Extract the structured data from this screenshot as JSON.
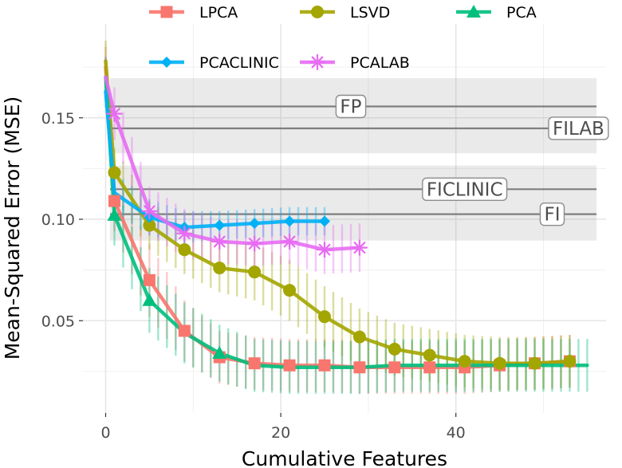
{
  "chart_data": {
    "type": "line",
    "title": "",
    "xlabel": "Cumulative Features",
    "ylabel": "Mean-Squared Error (MSE)",
    "xlim": [
      -4,
      56
    ],
    "ylim": [
      0.006,
      0.19
    ],
    "x_ticks": [
      0,
      20,
      40
    ],
    "y_ticks": [
      0.05,
      0.1,
      0.15
    ],
    "x_tick_labels": [
      "0",
      "20",
      "40"
    ],
    "y_tick_labels": [
      "0.05",
      "0.10",
      "0.15"
    ],
    "grid": true,
    "legend_position": "top",
    "reference_bands": [
      {
        "label": "FP",
        "center": 0.1556,
        "lower": 0.1325,
        "upper": 0.1695
      },
      {
        "label": "FILAB",
        "center": 0.1448,
        "lower": 0.1325,
        "upper": 0.1695
      },
      {
        "label": "FICLINIC",
        "center": 0.1148,
        "lower": 0.0895,
        "upper": 0.1265
      },
      {
        "label": "FI",
        "center": 0.1025,
        "lower": 0.0895,
        "upper": 0.1265
      }
    ],
    "series": [
      {
        "name": "LPCA",
        "color": "#F8766D",
        "marker": "square",
        "points": [
          {
            "x": 0,
            "y": 0.175,
            "err": 0.01
          },
          {
            "x": 1,
            "y": 0.109,
            "err": 0.015
          },
          {
            "x": 5,
            "y": 0.07,
            "err": 0.018
          },
          {
            "x": 9,
            "y": 0.045,
            "err": 0.015
          },
          {
            "x": 13,
            "y": 0.032,
            "err": 0.013
          },
          {
            "x": 17,
            "y": 0.029,
            "err": 0.013
          },
          {
            "x": 21,
            "y": 0.028,
            "err": 0.013
          },
          {
            "x": 25,
            "y": 0.028,
            "err": 0.013
          },
          {
            "x": 29,
            "y": 0.027,
            "err": 0.013
          },
          {
            "x": 33,
            "y": 0.027,
            "err": 0.013
          },
          {
            "x": 37,
            "y": 0.027,
            "err": 0.013
          },
          {
            "x": 41,
            "y": 0.027,
            "err": 0.013
          },
          {
            "x": 45,
            "y": 0.028,
            "err": 0.013
          },
          {
            "x": 49,
            "y": 0.029,
            "err": 0.013
          },
          {
            "x": 53,
            "y": 0.03,
            "err": 0.013
          }
        ],
        "marker_x": [
          1,
          5,
          9,
          13,
          17,
          21,
          25,
          29,
          33,
          37,
          41,
          45,
          49,
          53
        ]
      },
      {
        "name": "LSVD",
        "color": "#A3A500",
        "marker": "circle",
        "points": [
          {
            "x": 0,
            "y": 0.178,
            "err": 0.01
          },
          {
            "x": 1,
            "y": 0.123,
            "err": 0.012
          },
          {
            "x": 5,
            "y": 0.097,
            "err": 0.012
          },
          {
            "x": 9,
            "y": 0.085,
            "err": 0.012
          },
          {
            "x": 13,
            "y": 0.076,
            "err": 0.012
          },
          {
            "x": 17,
            "y": 0.074,
            "err": 0.014
          },
          {
            "x": 21,
            "y": 0.065,
            "err": 0.015
          },
          {
            "x": 25,
            "y": 0.052,
            "err": 0.015
          },
          {
            "x": 29,
            "y": 0.042,
            "err": 0.014
          },
          {
            "x": 33,
            "y": 0.036,
            "err": 0.013
          },
          {
            "x": 37,
            "y": 0.033,
            "err": 0.013
          },
          {
            "x": 41,
            "y": 0.03,
            "err": 0.013
          },
          {
            "x": 45,
            "y": 0.029,
            "err": 0.013
          },
          {
            "x": 49,
            "y": 0.029,
            "err": 0.013
          },
          {
            "x": 53,
            "y": 0.03,
            "err": 0.013
          }
        ],
        "marker_x": [
          1,
          5,
          9,
          13,
          17,
          21,
          25,
          29,
          33,
          37,
          41,
          45,
          49,
          53
        ]
      },
      {
        "name": "PCA",
        "color": "#00BF7D",
        "marker": "triangle",
        "points": [
          {
            "x": 0,
            "y": 0.17,
            "err": 0.01
          },
          {
            "x": 1,
            "y": 0.102,
            "err": 0.015
          },
          {
            "x": 5,
            "y": 0.06,
            "err": 0.016
          },
          {
            "x": 9,
            "y": 0.044,
            "err": 0.015
          },
          {
            "x": 13,
            "y": 0.034,
            "err": 0.014
          },
          {
            "x": 17,
            "y": 0.028,
            "err": 0.013
          },
          {
            "x": 21,
            "y": 0.027,
            "err": 0.013
          },
          {
            "x": 25,
            "y": 0.027,
            "err": 0.013
          },
          {
            "x": 29,
            "y": 0.027,
            "err": 0.013
          },
          {
            "x": 33,
            "y": 0.028,
            "err": 0.013
          },
          {
            "x": 37,
            "y": 0.028,
            "err": 0.013
          },
          {
            "x": 41,
            "y": 0.028,
            "err": 0.013
          },
          {
            "x": 45,
            "y": 0.028,
            "err": 0.013
          },
          {
            "x": 49,
            "y": 0.028,
            "err": 0.013
          },
          {
            "x": 55,
            "y": 0.028,
            "err": 0.013
          }
        ],
        "marker_x": [
          1,
          5,
          13
        ]
      },
      {
        "name": "PCACLINIC",
        "color": "#00B0F6",
        "marker": "diamond",
        "points": [
          {
            "x": 0,
            "y": 0.163,
            "err": 0.008
          },
          {
            "x": 1,
            "y": 0.113,
            "err": 0.01
          },
          {
            "x": 5,
            "y": 0.101,
            "err": 0.009
          },
          {
            "x": 9,
            "y": 0.096,
            "err": 0.008
          },
          {
            "x": 13,
            "y": 0.097,
            "err": 0.007
          },
          {
            "x": 17,
            "y": 0.098,
            "err": 0.007
          },
          {
            "x": 21,
            "y": 0.099,
            "err": 0.007
          },
          {
            "x": 25,
            "y": 0.099,
            "err": 0.007
          }
        ],
        "marker_x": [
          5,
          9,
          13,
          17,
          21,
          25
        ]
      },
      {
        "name": "PCALAB",
        "color": "#E76BF3",
        "marker": "asterisk",
        "points": [
          {
            "x": 0,
            "y": 0.17,
            "err": 0.01
          },
          {
            "x": 1,
            "y": 0.152,
            "err": 0.013
          },
          {
            "x": 5,
            "y": 0.104,
            "err": 0.012
          },
          {
            "x": 9,
            "y": 0.093,
            "err": 0.012
          },
          {
            "x": 13,
            "y": 0.089,
            "err": 0.011
          },
          {
            "x": 17,
            "y": 0.088,
            "err": 0.011
          },
          {
            "x": 21,
            "y": 0.089,
            "err": 0.011
          },
          {
            "x": 25,
            "y": 0.085,
            "err": 0.012
          },
          {
            "x": 29,
            "y": 0.086,
            "err": 0.012
          }
        ],
        "marker_x": [
          1,
          5,
          9,
          13,
          17,
          21,
          25,
          29
        ]
      }
    ]
  }
}
